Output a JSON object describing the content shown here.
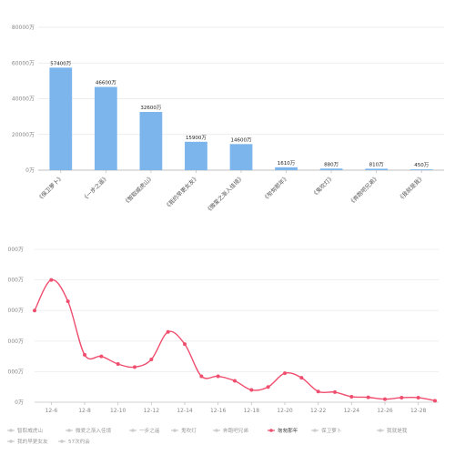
{
  "chart_data": [
    {
      "type": "bar",
      "categories": [
        "《保卫萝卜》",
        "《一步之遥》",
        "《智取威虎山》",
        "《我的早更女友》",
        "《微爱之渐入佳境》",
        "《匆匆那年》",
        "《鬼吹灯》",
        "《奔跑吧兄弟》",
        "《我就是我》"
      ],
      "values": [
        57400,
        46600,
        32600,
        15900,
        14600,
        1610,
        880,
        810,
        450
      ],
      "data_labels": [
        "57400万",
        "46600万",
        "32600万",
        "15900万",
        "14600万",
        "1610万",
        "880万",
        "810万",
        "450万"
      ],
      "ylim": [
        0,
        80000
      ],
      "yticks": [
        0,
        20000,
        40000,
        60000,
        80000
      ],
      "ytick_labels": [
        "0万",
        "20000万",
        "40000万",
        "60000万",
        "80000万"
      ],
      "color": "#7cb5ec",
      "grid": true
    },
    {
      "type": "line",
      "x": [
        "12-5",
        "12-6",
        "12-7",
        "12-8",
        "12-9",
        "12-10",
        "12-11",
        "12-12",
        "12-13",
        "12-14",
        "12-15",
        "12-16",
        "12-17",
        "12-18",
        "12-19",
        "12-20",
        "12-21",
        "12-22",
        "12-23",
        "12-24",
        "12-25",
        "12-26",
        "12-27",
        "12-28",
        "12-29"
      ],
      "xtick_labels": [
        "12-6",
        "12-8",
        "12-10",
        "12-12",
        "12-14",
        "12-16",
        "12-18",
        "12-20",
        "12-22",
        "12-24",
        "12-26",
        "12-28"
      ],
      "ytick_labels": [
        "0万",
        "000万",
        "000万",
        "000万",
        "000万",
        "000万"
      ],
      "series": [
        {
          "name": "匆匆那年",
          "color": "#f04e6e",
          "values": [
            3000,
            4000,
            3300,
            1550,
            1500,
            1250,
            1150,
            1400,
            2300,
            1900,
            850,
            850,
            700,
            400,
            500,
            950,
            800,
            350,
            330,
            180,
            160,
            100,
            150,
            150,
            50
          ]
        }
      ],
      "legend": {
        "placement": "bottom",
        "items": [
          "智取威虎山",
          "微爱之渐入佳境",
          "一步之遥",
          "鬼吹灯",
          "奔跑吧兄弟",
          "匆匆那年",
          "保卫萝卜",
          "我就是我",
          "我的早更女友",
          "57次约会"
        ],
        "active": "匆匆那年",
        "inactive_color": "#cccccc"
      },
      "grid": true
    }
  ]
}
